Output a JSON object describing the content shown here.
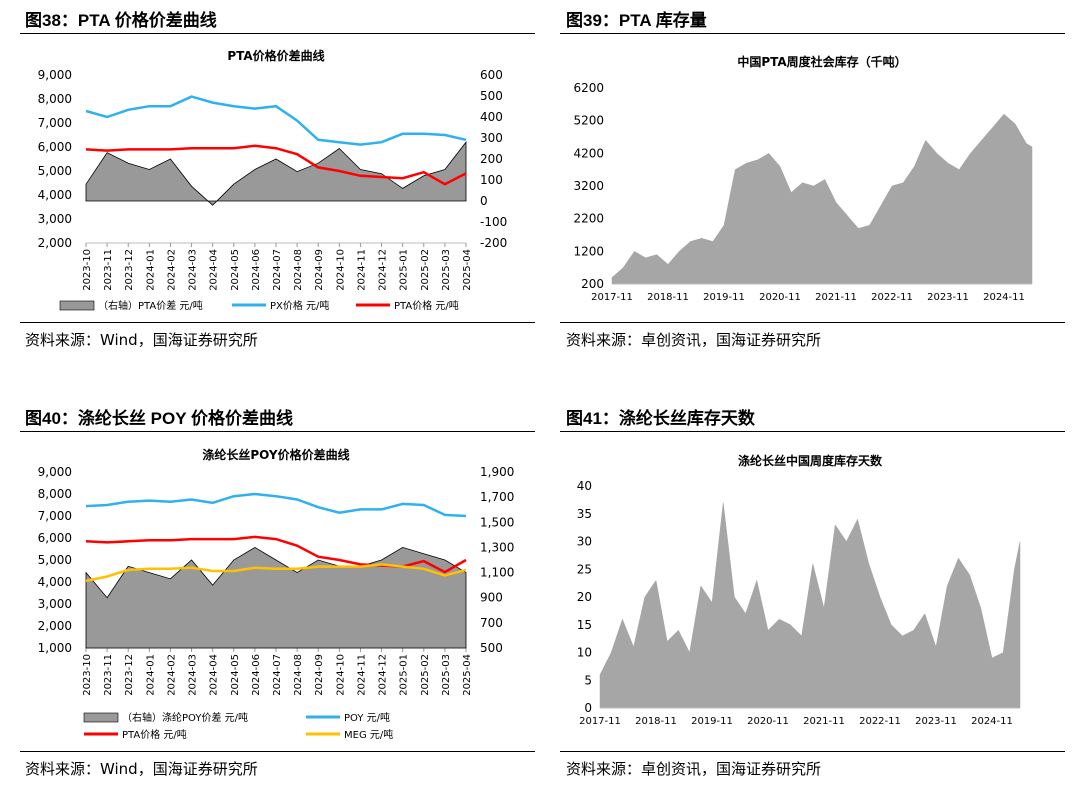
{
  "fig38": {
    "title": "图38：PTA 价格价差曲线",
    "source": "资料来源：Wind，国海证券研究所",
    "chart_data": {
      "type": "area",
      "title": "PTA价格价差曲线",
      "categories": [
        "2023-10",
        "2023-11",
        "2023-12",
        "2024-01",
        "2024-02",
        "2024-03",
        "2024-04",
        "2024-05",
        "2024-06",
        "2024-07",
        "2024-08",
        "2024-09",
        "2024-10",
        "2024-11",
        "2024-12",
        "2025-01",
        "2025-02",
        "2025-03",
        "2025-04"
      ],
      "ylim": [
        2000,
        9000
      ],
      "yticks": [
        "2,000",
        "3,000",
        "4,000",
        "5,000",
        "6,000",
        "7,000",
        "8,000",
        "9,000"
      ],
      "y2lim": [
        -200,
        600
      ],
      "y2ticks": [
        "-200",
        "-100",
        "0",
        "100",
        "200",
        "300",
        "400",
        "500",
        "600"
      ],
      "series": [
        {
          "name": "（右轴）PTA价差  元/吨",
          "type": "area",
          "axis": "right",
          "color": "#999999",
          "values": [
            80,
            230,
            180,
            150,
            200,
            70,
            -20,
            80,
            150,
            200,
            140,
            180,
            250,
            150,
            130,
            60,
            120,
            150,
            280
          ]
        },
        {
          "name": "PX价格  元/吨",
          "type": "line",
          "axis": "left",
          "color": "#2eb1ee",
          "values": [
            7500,
            7250,
            7550,
            7700,
            7700,
            8100,
            7850,
            7700,
            7600,
            7700,
            7100,
            6300,
            6200,
            6100,
            6200,
            6550,
            6550,
            6500,
            6300
          ]
        },
        {
          "name": "PTA价格  元/吨",
          "type": "line",
          "axis": "left",
          "color": "#ff0000",
          "values": [
            5900,
            5850,
            5900,
            5900,
            5900,
            5950,
            5950,
            5950,
            6050,
            5950,
            5700,
            5150,
            5000,
            4800,
            4750,
            4700,
            4950,
            4450,
            4900
          ]
        }
      ]
    }
  },
  "fig39": {
    "title": "图39：PTA 库存量",
    "source": "资料来源：卓创资讯，国海证券研究所",
    "chart_data": {
      "type": "area",
      "title": "中国PTA周度社会库存（千吨）",
      "categories": [
        "2017-11",
        "2018-11",
        "2019-11",
        "2020-11",
        "2021-11",
        "2022-11",
        "2023-11",
        "2024-11"
      ],
      "ylim": [
        200,
        6200
      ],
      "yticks": [
        "200",
        "1200",
        "2200",
        "3200",
        "4200",
        "5200",
        "6200"
      ],
      "series": [
        {
          "name": "中国PTA周度社会库存",
          "color": "#a6a6a6",
          "x": [
            2017.8,
            2018.0,
            2018.2,
            2018.4,
            2018.6,
            2018.8,
            2019.0,
            2019.2,
            2019.4,
            2019.6,
            2019.8,
            2020.0,
            2020.2,
            2020.4,
            2020.6,
            2020.8,
            2021.0,
            2021.2,
            2021.4,
            2021.6,
            2021.8,
            2022.0,
            2022.2,
            2022.4,
            2022.6,
            2022.8,
            2023.0,
            2023.2,
            2023.4,
            2023.6,
            2023.8,
            2024.0,
            2024.2,
            2024.4,
            2024.6,
            2024.8,
            2025.0,
            2025.2,
            2025.3
          ],
          "values": [
            400,
            700,
            1200,
            1000,
            1100,
            800,
            1200,
            1500,
            1600,
            1500,
            2000,
            3700,
            3900,
            4000,
            4200,
            3800,
            3000,
            3300,
            3200,
            3400,
            2700,
            2300,
            1900,
            2000,
            2600,
            3200,
            3300,
            3800,
            4600,
            4200,
            3900,
            3700,
            4200,
            4600,
            5000,
            5400,
            5100,
            4500,
            4400
          ]
        }
      ]
    }
  },
  "fig40": {
    "title": "图40：涤纶长丝 POY 价格价差曲线",
    "source": "资料来源：Wind，国海证券研究所",
    "chart_data": {
      "type": "area",
      "title": "涤纶长丝POY价格价差曲线",
      "categories": [
        "2023-10",
        "2023-11",
        "2023-12",
        "2024-01",
        "2024-02",
        "2024-03",
        "2024-04",
        "2024-05",
        "2024-06",
        "2024-07",
        "2024-08",
        "2024-09",
        "2024-10",
        "2024-11",
        "2024-12",
        "2025-01",
        "2025-02",
        "2025-03",
        "2025-04"
      ],
      "ylim": [
        1000,
        9000
      ],
      "yticks": [
        "1,000",
        "2,000",
        "3,000",
        "4,000",
        "5,000",
        "6,000",
        "7,000",
        "8,000",
        "9,000"
      ],
      "y2lim": [
        500,
        1900
      ],
      "y2ticks": [
        "500",
        "700",
        "900",
        "1,100",
        "1,300",
        "1,500",
        "1,700",
        "1,900"
      ],
      "series": [
        {
          "name": "（右轴）涤纶POY价差  元/吨",
          "type": "area",
          "axis": "right",
          "color": "#999999",
          "values": [
            1100,
            900,
            1150,
            1100,
            1050,
            1200,
            1000,
            1200,
            1300,
            1200,
            1100,
            1200,
            1150,
            1150,
            1200,
            1300,
            1250,
            1200,
            1100
          ]
        },
        {
          "name": "POY  元/吨",
          "type": "line",
          "axis": "left",
          "color": "#2eb1ee",
          "values": [
            7450,
            7500,
            7650,
            7700,
            7650,
            7750,
            7600,
            7900,
            8000,
            7900,
            7750,
            7400,
            7150,
            7300,
            7300,
            7550,
            7500,
            7050,
            7000
          ]
        },
        {
          "name": "PTA价格  元/吨",
          "type": "line",
          "axis": "left",
          "color": "#ff0000",
          "values": [
            5850,
            5800,
            5850,
            5900,
            5900,
            5950,
            5950,
            5950,
            6050,
            5950,
            5650,
            5150,
            5000,
            4800,
            4750,
            4700,
            4950,
            4450,
            5000
          ]
        },
        {
          "name": "MEG  元/吨",
          "type": "line",
          "axis": "left",
          "color": "#ffc000",
          "values": [
            4050,
            4250,
            4550,
            4600,
            4600,
            4650,
            4500,
            4500,
            4650,
            4600,
            4600,
            4700,
            4700,
            4700,
            4800,
            4700,
            4600,
            4300,
            4550
          ]
        }
      ]
    }
  },
  "fig41": {
    "title": "图41：涤纶长丝库存天数",
    "source": "资料来源：卓创资讯，国海证券研究所",
    "chart_data": {
      "type": "area",
      "title": "涤纶长丝中国周度库存天数",
      "categories": [
        "2017-11",
        "2018-11",
        "2019-11",
        "2020-11",
        "2021-11",
        "2022-11",
        "2023-11",
        "2024-11"
      ],
      "ylim": [
        0,
        40
      ],
      "yticks": [
        "0",
        "5",
        "10",
        "15",
        "20",
        "25",
        "30",
        "35",
        "40"
      ],
      "series": [
        {
          "name": "涤纶长丝中国周度库存天数",
          "color": "#a6a6a6",
          "x": [
            2017.8,
            2018.0,
            2018.2,
            2018.4,
            2018.6,
            2018.8,
            2019.0,
            2019.2,
            2019.4,
            2019.6,
            2019.8,
            2020.0,
            2020.2,
            2020.4,
            2020.6,
            2020.8,
            2021.0,
            2021.2,
            2021.4,
            2021.6,
            2021.8,
            2022.0,
            2022.2,
            2022.4,
            2022.6,
            2022.8,
            2023.0,
            2023.2,
            2023.4,
            2023.6,
            2023.8,
            2024.0,
            2024.2,
            2024.4,
            2024.6,
            2024.8,
            2025.0,
            2025.2,
            2025.3
          ],
          "values": [
            6,
            10,
            16,
            11,
            20,
            23,
            12,
            14,
            10,
            22,
            19,
            37,
            20,
            17,
            23,
            14,
            16,
            15,
            13,
            26,
            18,
            33,
            30,
            34,
            26,
            20,
            15,
            13,
            14,
            17,
            11,
            22,
            27,
            24,
            18,
            9,
            10,
            25,
            30
          ]
        }
      ]
    }
  }
}
